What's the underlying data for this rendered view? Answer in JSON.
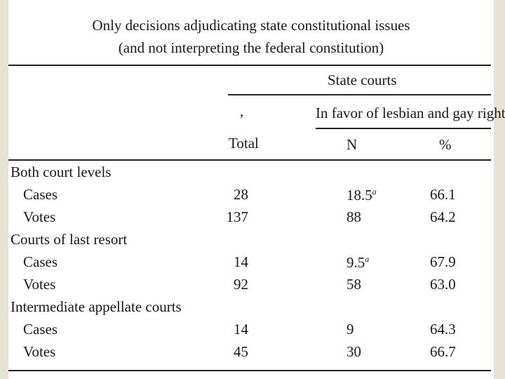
{
  "title": [
    "Only decisions adjudicating state constitutional issues",
    "(and not interpreting the federal constitution)"
  ],
  "table": {
    "group_header": "State courts",
    "stray_mark": ",",
    "subgroup_header": "In favor of lesbian and gay rights",
    "columns": [
      "Total",
      "N",
      "%"
    ],
    "sections": [
      {
        "label": "Both court levels",
        "rows": [
          {
            "label": "Cases",
            "total": "28",
            "n": "18.5",
            "n_note": "a",
            "pct": "66.1"
          },
          {
            "label": "Votes",
            "total": "137",
            "n": "88",
            "pct": "64.2"
          }
        ]
      },
      {
        "label": "Courts of last resort",
        "rows": [
          {
            "label": "Cases",
            "total": "14",
            "n": "9.5",
            "n_note": "a",
            "pct": "67.9"
          },
          {
            "label": "Votes",
            "total": "92",
            "n": "58",
            "pct": "63.0"
          }
        ]
      },
      {
        "label": "Intermediate appellate courts",
        "rows": [
          {
            "label": "Cases",
            "total": "14",
            "n": "9",
            "pct": "64.3"
          },
          {
            "label": "Votes",
            "total": "45",
            "n": "30",
            "pct": "66.7"
          }
        ]
      }
    ]
  }
}
